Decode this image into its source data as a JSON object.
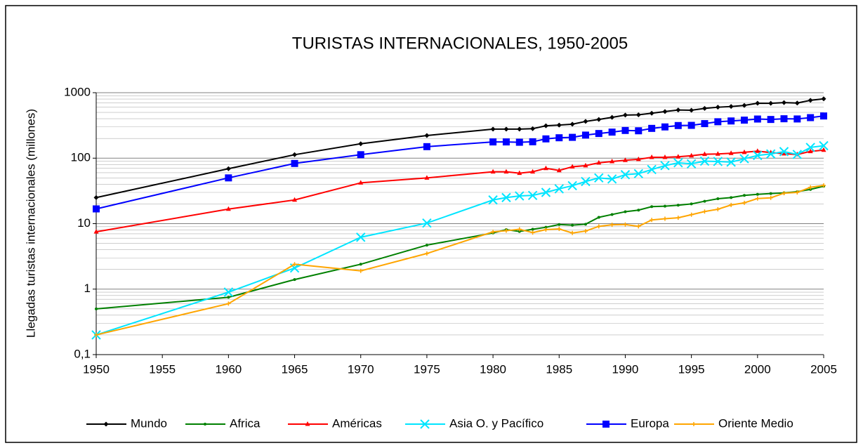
{
  "chart_data": {
    "type": "line",
    "title": "TURISTAS INTERNACIONALES, 1950-2005",
    "y_label": "Llegadas turistas internacionales (millones)",
    "log_scale_y": true,
    "grid": true,
    "minor_grid": true,
    "legend": "bottom",
    "xlim": [
      1950,
      2005
    ],
    "xticks": [
      1950,
      1955,
      1960,
      1965,
      1970,
      1975,
      1980,
      1985,
      1990,
      1995,
      2000,
      2005
    ],
    "ylim": [
      0.1,
      1000
    ],
    "yticks": [
      {
        "value": 0.1,
        "label": "0,1"
      },
      1,
      10,
      100,
      1000
    ],
    "x": [
      1950,
      1960,
      1965,
      1970,
      1975,
      1980,
      1981,
      1982,
      1983,
      1984,
      1985,
      1986,
      1987,
      1988,
      1989,
      1990,
      1991,
      1992,
      1993,
      1994,
      1995,
      1996,
      1997,
      1998,
      1999,
      2000,
      2001,
      2002,
      2003,
      2004,
      2005
    ],
    "series": [
      {
        "name": "Mundo",
        "color": "#000000",
        "marker": "diamond",
        "values": [
          25,
          69,
          113,
          166,
          222,
          278,
          278,
          278,
          282,
          312,
          320,
          330,
          364,
          390,
          420,
          455,
          460,
          485,
          515,
          545,
          540,
          575,
          600,
          615,
          640,
          690,
          688,
          705,
          695,
          765,
          805
        ]
      },
      {
        "name": "Africa",
        "color": "#008000",
        "marker": "dot",
        "values": [
          0.5,
          0.75,
          1.4,
          2.4,
          4.7,
          7.2,
          8.1,
          7.6,
          8.2,
          8.8,
          9.7,
          9.5,
          9.8,
          12.5,
          13.8,
          15.2,
          16.1,
          18.2,
          18.5,
          19.1,
          20,
          22,
          24,
          25,
          27,
          28,
          28.8,
          29.5,
          30.8,
          33.3,
          37.3
        ]
      },
      {
        "name": "Américas",
        "color": "#ff0000",
        "marker": "triangle",
        "values": [
          7.5,
          16.7,
          23,
          42,
          50,
          62,
          62,
          59,
          62,
          70,
          65,
          74,
          77,
          85,
          89,
          93,
          96,
          103,
          103,
          105,
          109,
          115,
          116,
          119,
          123,
          128,
          122,
          117,
          114,
          127,
          133
        ]
      },
      {
        "name": "Asia O. y Pacífico",
        "color": "#00e5ff",
        "marker": "x",
        "values": [
          0.2,
          0.9,
          2.1,
          6.2,
          10.2,
          23,
          25,
          26.5,
          27,
          30,
          34,
          38,
          44,
          50,
          48,
          56,
          58,
          67,
          77,
          85,
          82,
          90,
          89,
          87,
          98,
          110,
          116,
          126,
          114,
          146,
          155
        ]
      },
      {
        "name": "Europa",
        "color": "#0000ff",
        "marker": "square",
        "values": [
          16.8,
          50,
          83,
          113,
          150,
          177,
          177,
          175,
          178,
          197,
          205,
          208,
          225,
          238,
          250,
          265,
          262,
          285,
          300,
          315,
          317,
          337,
          360,
          370,
          381,
          396,
          390,
          400,
          397,
          416,
          441
        ]
      },
      {
        "name": "Oriente Medio",
        "color": "#ffa500",
        "marker": "plus",
        "values": [
          0.2,
          0.6,
          2.4,
          1.9,
          3.5,
          7.5,
          7.8,
          8.2,
          7.3,
          8.1,
          8.3,
          7.2,
          7.7,
          9.1,
          9.6,
          9.7,
          9.1,
          11.4,
          11.9,
          12.3,
          13.7,
          15.3,
          16.6,
          19.3,
          20.8,
          24.2,
          24.8,
          29.2,
          30,
          35.9,
          38.4
        ]
      }
    ]
  }
}
